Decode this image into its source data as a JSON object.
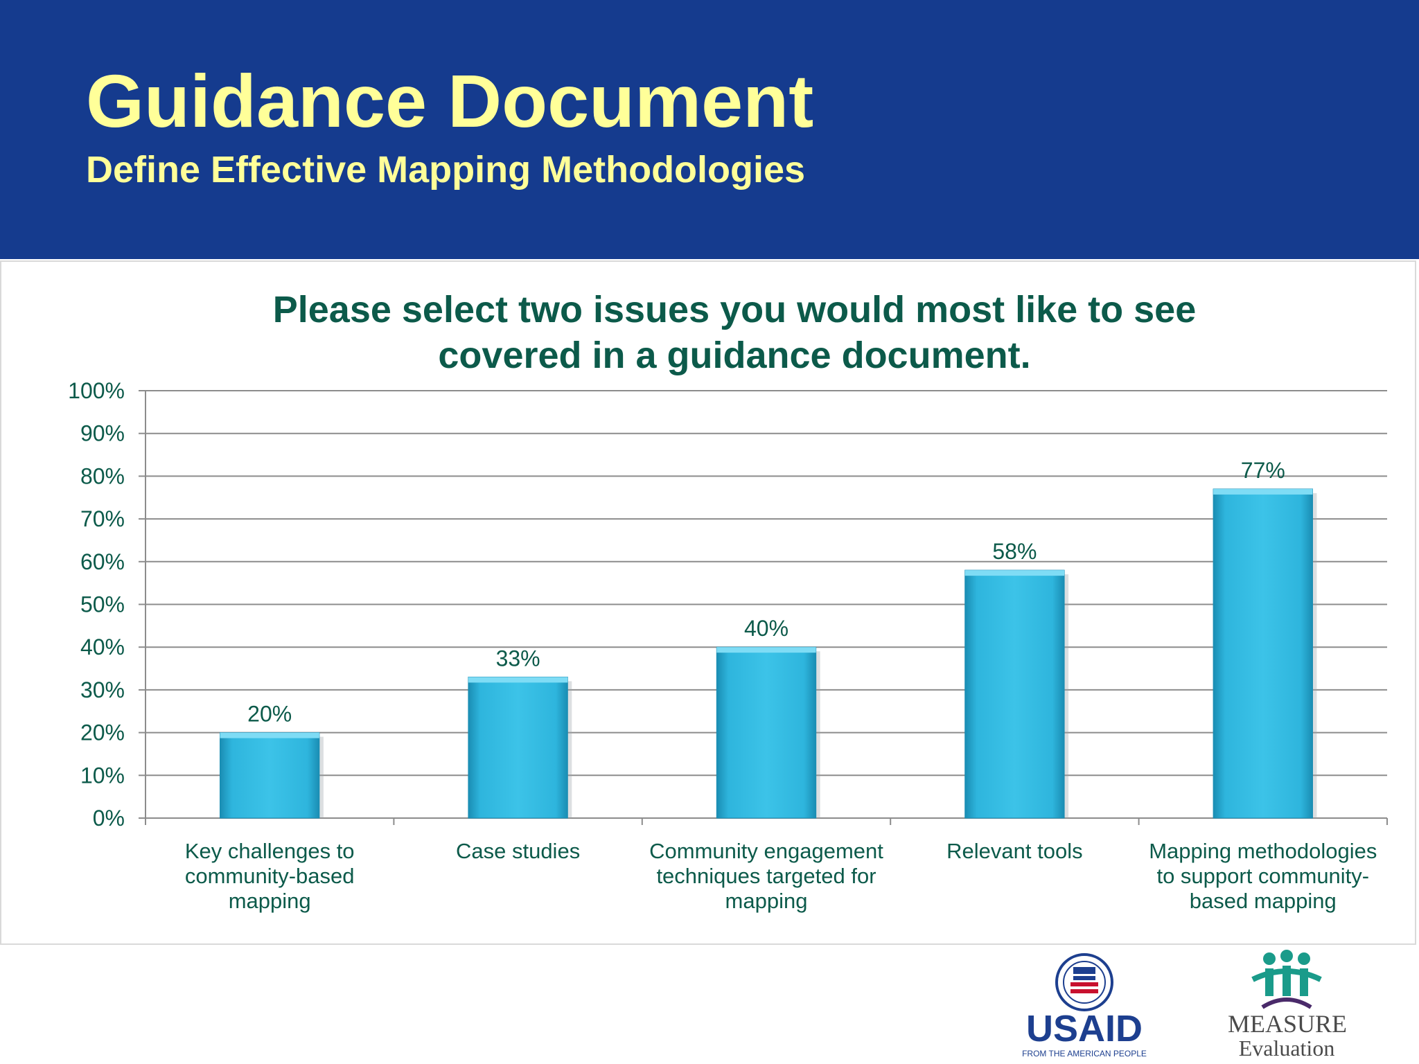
{
  "header": {
    "title": "Guidance Document",
    "subtitle": "Define Effective Mapping Methodologies",
    "background_color": "#153b8e",
    "text_color": "#ffff99"
  },
  "chart_data": {
    "type": "bar",
    "title_lines": [
      "Please select two issues you would most like to see",
      "covered in a guidance document."
    ],
    "categories": [
      [
        "Key challenges to",
        "community-based",
        "mapping"
      ],
      [
        "Case studies"
      ],
      [
        "Community engagement",
        "techniques targeted for",
        "mapping"
      ],
      [
        "Relevant tools"
      ],
      [
        "Mapping methodologies",
        "to support community-",
        "based mapping"
      ]
    ],
    "values": [
      20,
      33,
      40,
      58,
      77
    ],
    "data_labels": [
      "20%",
      "33%",
      "40%",
      "58%",
      "77%"
    ],
    "y_ticks": [
      "0%",
      "10%",
      "20%",
      "30%",
      "40%",
      "50%",
      "60%",
      "70%",
      "80%",
      "90%",
      "100%"
    ],
    "ylim": [
      0,
      100
    ],
    "grid": true,
    "legend": false,
    "bar_color": "#2eb5dd",
    "text_color": "#0c5a4a"
  },
  "logos": {
    "usaid": {
      "seal_text": "USAID",
      "wordmark": "USAID",
      "tagline": "FROM THE AMERICAN PEOPLE"
    },
    "measure": {
      "wordmark": "MEASURE",
      "subword": "Evaluation"
    }
  }
}
